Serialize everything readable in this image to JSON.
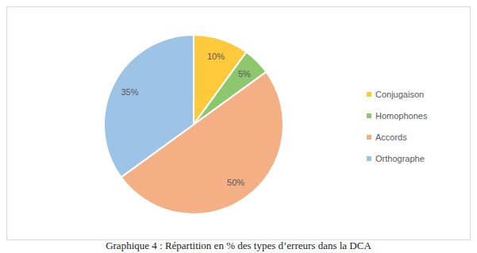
{
  "chart_data": {
    "type": "pie",
    "title": "Graphique 4 : Répartition en % des types d’erreurs dans la DCA",
    "categories": [
      "Conjugaison",
      "Homophones",
      "Accords",
      "Orthographe"
    ],
    "values": [
      10,
      5,
      50,
      35
    ],
    "value_labels": [
      "10%",
      "5%",
      "50%",
      "35%"
    ],
    "colors": [
      "#ffc93c",
      "#8cc66d",
      "#f4af84",
      "#9dc3e6"
    ],
    "data_labels": true,
    "legend": "right"
  }
}
